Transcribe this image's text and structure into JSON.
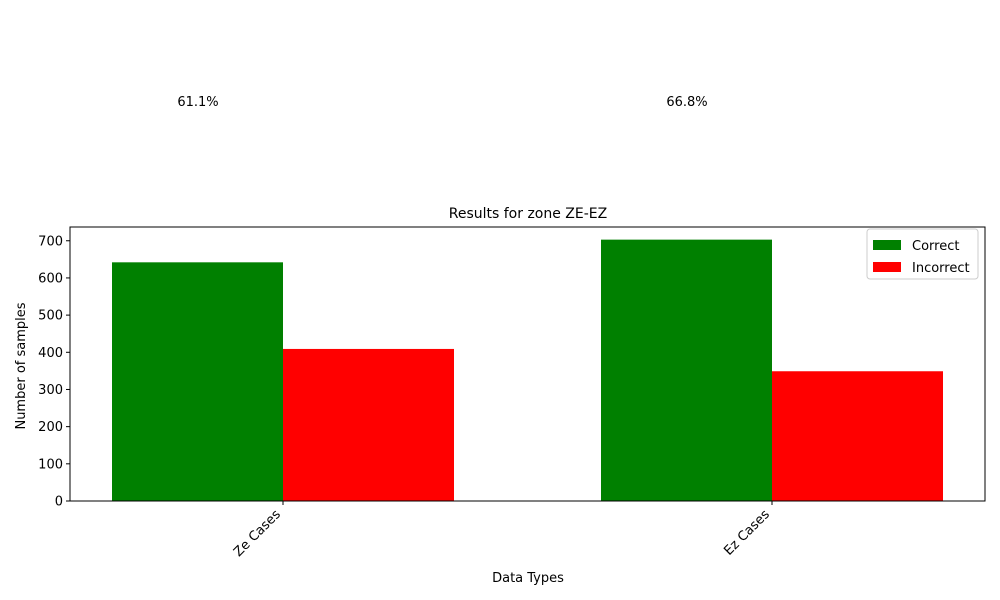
{
  "chart_data": {
    "type": "bar",
    "title": "Results for zone ZE-EZ",
    "xlabel": "Data Types",
    "ylabel": "Number of samples",
    "categories": [
      "Ze Cases",
      "Ez Cases"
    ],
    "series": [
      {
        "name": "Correct",
        "values": [
          642,
          703
        ],
        "color": "#008000"
      },
      {
        "name": "Incorrect",
        "values": [
          409,
          349
        ],
        "color": "#ff0000"
      }
    ],
    "ylim": [
      0,
      737
    ],
    "yticks": [
      0,
      100,
      200,
      300,
      400,
      500,
      600,
      700
    ],
    "annotations": [
      "61.1%",
      "66.8%"
    ],
    "legend": "top-right",
    "grid": false
  }
}
